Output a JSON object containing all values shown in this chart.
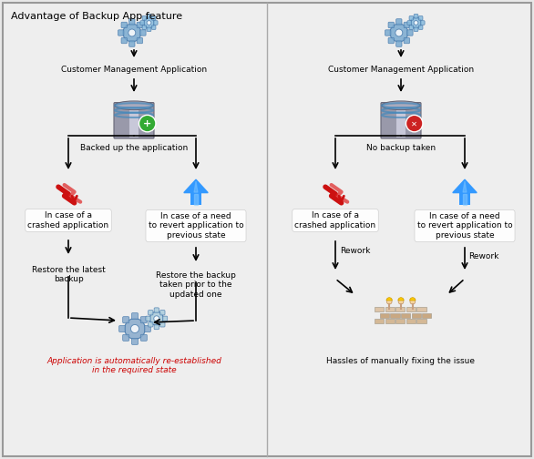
{
  "title": "Advantage of Backup App feature",
  "bg_color": "#e8e8e8",
  "panel_bg": "#f0f0f0",
  "border_color": "#999999",
  "text_color": "#000000",
  "blue_text": "#1155cc",
  "red_text": "#cc0000",
  "left_panel": {
    "app_label": "Customer Management Application",
    "db_label": "Backed up the application",
    "db_icon": "green_plus",
    "left_case_label": "In case of a\ncrashed application",
    "right_case_label": "In case of a need\nto revert application to\nprevious state",
    "left_restore_label": "Restore the latest\nbackup",
    "right_restore_label": "Restore the backup\ntaken prior to the\nupdated one",
    "bottom_label": "Application is automatically re-established\nin the required state"
  },
  "right_panel": {
    "app_label": "Customer Management Application",
    "db_label": "No backup taken",
    "db_icon": "red_x",
    "left_case_label": "In case of a\ncrashed application",
    "right_case_label": "In case of a need\nto revert application to\nprevious state",
    "left_rework": "Rework",
    "right_rework": "Rework",
    "bottom_label": "Hassles of manually fixing the issue"
  }
}
